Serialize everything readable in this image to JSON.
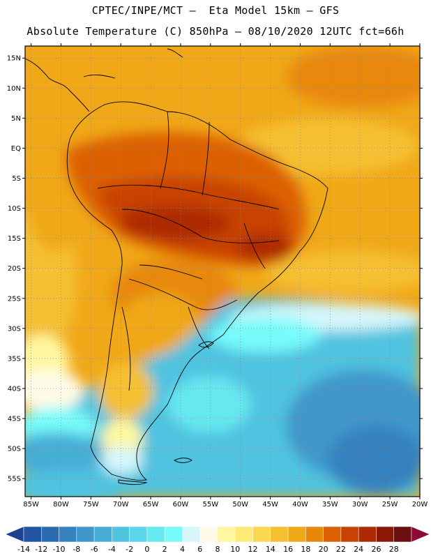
{
  "title": {
    "line1": "CPTEC/INPE/MCT –  Eta Model 15km – GFS",
    "line2": "Absolute Temperature (C) 850hPa – 08/10/2020 12UTC fct=66h"
  },
  "map": {
    "lon_range": [
      -86,
      -20
    ],
    "lat_range": [
      -58,
      17
    ],
    "lat_ticks": [
      {
        "value": 15,
        "label": "15N"
      },
      {
        "value": 10,
        "label": "10N"
      },
      {
        "value": 5,
        "label": "5N"
      },
      {
        "value": 0,
        "label": "EQ"
      },
      {
        "value": -5,
        "label": "5S"
      },
      {
        "value": -10,
        "label": "10S"
      },
      {
        "value": -15,
        "label": "15S"
      },
      {
        "value": -20,
        "label": "20S"
      },
      {
        "value": -25,
        "label": "25S"
      },
      {
        "value": -30,
        "label": "30S"
      },
      {
        "value": -35,
        "label": "35S"
      },
      {
        "value": -40,
        "label": "40S"
      },
      {
        "value": -45,
        "label": "45S"
      },
      {
        "value": -50,
        "label": "50S"
      },
      {
        "value": -55,
        "label": "55S"
      }
    ],
    "lon_ticks": [
      {
        "value": -85,
        "label": "85W"
      },
      {
        "value": -80,
        "label": "80W"
      },
      {
        "value": -75,
        "label": "75W"
      },
      {
        "value": -70,
        "label": "70W"
      },
      {
        "value": -65,
        "label": "65W"
      },
      {
        "value": -60,
        "label": "60W"
      },
      {
        "value": -55,
        "label": "55W"
      },
      {
        "value": -50,
        "label": "50W"
      },
      {
        "value": -45,
        "label": "45W"
      },
      {
        "value": -40,
        "label": "40W"
      },
      {
        "value": -35,
        "label": "35W"
      },
      {
        "value": -30,
        "label": "30W"
      },
      {
        "value": -25,
        "label": "25W"
      },
      {
        "value": -20,
        "label": "20W"
      }
    ],
    "gridlines": true
  },
  "colorbar": {
    "labels": [
      "-14",
      "-12",
      "-10",
      "-8",
      "-6",
      "-4",
      "-2",
      "0",
      "2",
      "4",
      "6",
      "8",
      "10",
      "12",
      "14",
      "16",
      "18",
      "20",
      "22",
      "24",
      "26",
      "28"
    ],
    "colors": [
      "#1f3f8f",
      "#2356a0",
      "#2a6cb0",
      "#3582bf",
      "#3f97cb",
      "#47aed6",
      "#4fc3e0",
      "#5ad6e8",
      "#66e8f0",
      "#77fbfb",
      "#d6f6fb",
      "#fffbe8",
      "#fff7a0",
      "#ffea74",
      "#fbd850",
      "#f5c030",
      "#f0a818",
      "#e88808",
      "#dd6004",
      "#c84204",
      "#ad2a06",
      "#8a1808",
      "#6a1010",
      "#8c0a3a"
    ]
  }
}
